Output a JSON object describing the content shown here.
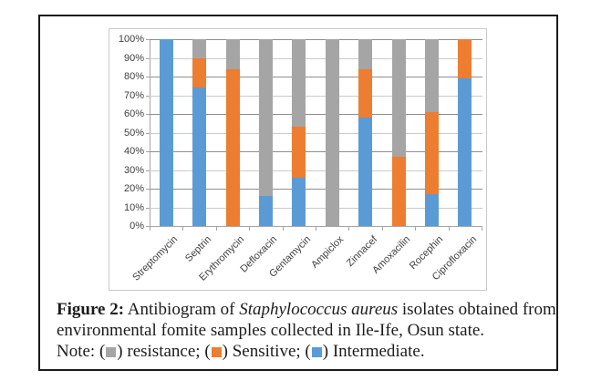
{
  "chart_data": {
    "type": "bar",
    "stacked": true,
    "orientation": "vertical",
    "categories": [
      "Streptomycin",
      "Septrin",
      "Erythromycin",
      "Defloxacin",
      "Gentamycin",
      "Ampiclox",
      "Zinnacef",
      "Amoxacilin",
      "Rocephin",
      "Ciprofloxacin"
    ],
    "series": [
      {
        "name": "Intermediate",
        "color": "#5B9BD5",
        "values": [
          100,
          74,
          0,
          16,
          26,
          0,
          58,
          0,
          17,
          79
        ]
      },
      {
        "name": "Sensitive",
        "color": "#ED7D31",
        "values": [
          0,
          16,
          84,
          0,
          27,
          0,
          26,
          37,
          44,
          21
        ]
      },
      {
        "name": "resistance",
        "color": "#A5A5A5",
        "values": [
          0,
          10,
          16,
          84,
          47,
          100,
          16,
          63,
          39,
          0
        ]
      }
    ],
    "title": "",
    "xlabel": "",
    "ylabel": "",
    "ylim": [
      0,
      100
    ],
    "ytick_step": 10,
    "ytick_labels": [
      "0%",
      "10%",
      "20%",
      "30%",
      "40%",
      "50%",
      "60%",
      "70%",
      "80%",
      "90%",
      "100%"
    ],
    "grid": true,
    "legend_position": "in-caption-note"
  },
  "caption": {
    "line1_bold": "Figure 2:",
    "line1_normal": " Antibiogram of ",
    "line1_italic": "Staphylococcus aureus",
    "line1_rest": " isolates obtained from",
    "line2": "environmental fomite samples collected in Ile-Ife, Osun state.",
    "note": {
      "prefix": "Note: ",
      "open": "(",
      "close": ") ",
      "items": [
        {
          "text": "resistance",
          "color": "#A5A5A5",
          "suffix": "; "
        },
        {
          "text": "Sensitive",
          "color": "#ED7D31",
          "suffix": "; "
        },
        {
          "text": "Intermediate",
          "color": "#5B9BD5",
          "suffix": "."
        }
      ]
    }
  },
  "colors": {
    "figure_border": "#1a1a1a",
    "chart_frame": "#c9c9c9",
    "axis": "#a6a6a6",
    "gridline_light": "#cbcbcb",
    "gridline_dark": "#8f8f8f",
    "axis_text": "#3f3f3f",
    "caption_text": "#1c1c1c"
  }
}
